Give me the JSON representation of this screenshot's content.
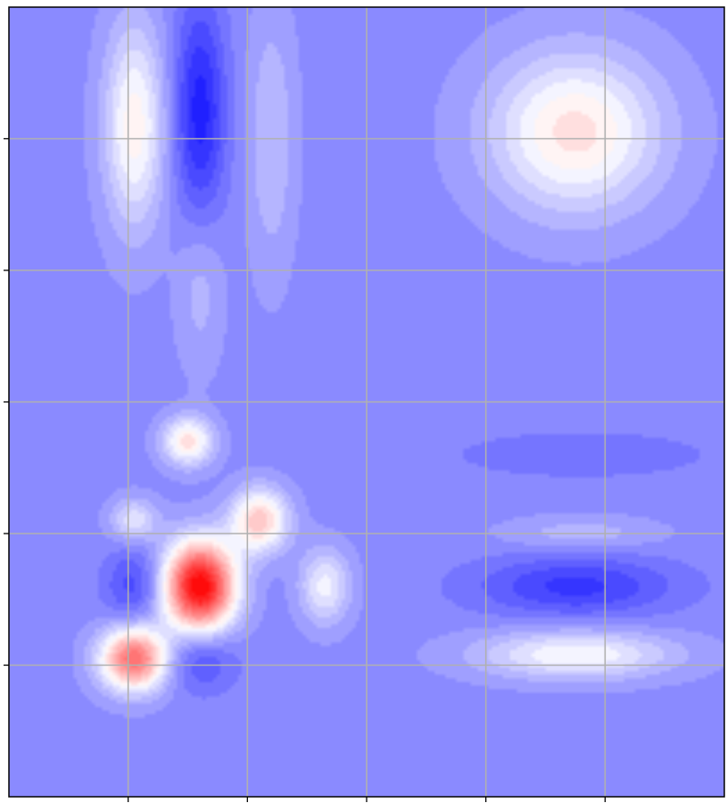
{
  "chart_data": {
    "type": "heatmap",
    "subtype": "filled-contour",
    "title": "",
    "xlabel": "",
    "ylabel": "",
    "xlim": [
      0,
      6
    ],
    "ylim": [
      0,
      6
    ],
    "grid": true,
    "legend": "none",
    "tick_labels_shown": false,
    "x_ticks": [
      1,
      2,
      3,
      4,
      5
    ],
    "y_ticks": [
      1,
      2,
      3,
      4,
      5
    ],
    "colormap": "bwr",
    "colormap_colors": [
      "#0000ff",
      "#ffffff",
      "#ff0000"
    ],
    "value_range": [
      -1,
      1
    ],
    "background_value": -0.45,
    "features": [
      {
        "name": "red-peak",
        "x": 1.6,
        "y": 1.6,
        "value": 1.0,
        "sx": 0.21,
        "sy": 0.24
      },
      {
        "name": "white-lobe-lower-left",
        "x": 1.05,
        "y": 1.05,
        "value": 0.58,
        "sx": 0.2,
        "sy": 0.17
      },
      {
        "name": "light-lobe-center",
        "x": 2.1,
        "y": 2.1,
        "value": 0.22,
        "sx": 0.17,
        "sy": 0.17
      },
      {
        "name": "light-lobe-mid",
        "x": 1.5,
        "y": 2.7,
        "value": 0.12,
        "sx": 0.15,
        "sy": 0.13
      },
      {
        "name": "blue-lobe-left",
        "x": 1.05,
        "y": 1.6,
        "value": -0.72,
        "sx": 0.17,
        "sy": 0.21
      },
      {
        "name": "blue-lobe-below",
        "x": 1.6,
        "y": 1.05,
        "value": -0.72,
        "sx": 0.21,
        "sy": 0.17
      },
      {
        "name": "blue-lobe-above",
        "x": 1.6,
        "y": 2.1,
        "value": -0.46,
        "sx": 0.17,
        "sy": 0.13
      },
      {
        "name": "blue-lobe-right",
        "x": 2.15,
        "y": 1.6,
        "value": -0.46,
        "sx": 0.14,
        "sy": 0.17
      },
      {
        "name": "light-lobe-small-right",
        "x": 2.65,
        "y": 1.6,
        "value": -0.05,
        "sx": 0.15,
        "sy": 0.2
      },
      {
        "name": "light-lobe-small-left",
        "x": 1.05,
        "y": 2.1,
        "value": -0.1,
        "sx": 0.14,
        "sy": 0.12
      },
      {
        "name": "blue-band-top",
        "x": 1.6,
        "y": 5.2,
        "value": -0.88,
        "sx": 0.15,
        "sy": 0.6
      },
      {
        "name": "blue-band-top-tail",
        "x": 1.6,
        "y": 3.9,
        "value": -0.28,
        "sx": 0.14,
        "sy": 0.45
      },
      {
        "name": "light-band-top",
        "x": 1.05,
        "y": 5.1,
        "value": 0.05,
        "sx": 0.18,
        "sy": 0.55
      },
      {
        "name": "light-band-top-right",
        "x": 2.2,
        "y": 5.0,
        "value": -0.25,
        "sx": 0.14,
        "sy": 0.7
      },
      {
        "name": "light-diamond-top-right",
        "x": 4.75,
        "y": 5.05,
        "value": 0.12,
        "sx": 0.5,
        "sy": 0.42
      },
      {
        "name": "blue-lobe-lower-right",
        "x": 4.75,
        "y": 1.6,
        "value": -0.78,
        "sx": 0.58,
        "sy": 0.16
      },
      {
        "name": "light-lobe-lower-right",
        "x": 4.75,
        "y": 1.08,
        "value": 0.0,
        "sx": 0.58,
        "sy": 0.13
      },
      {
        "name": "light-band-right-mid",
        "x": 4.8,
        "y": 2.0,
        "value": -0.28,
        "sx": 0.45,
        "sy": 0.09
      },
      {
        "name": "blue-band-right-upper",
        "x": 4.8,
        "y": 2.6,
        "value": -0.55,
        "sx": 0.85,
        "sy": 0.14
      }
    ]
  }
}
